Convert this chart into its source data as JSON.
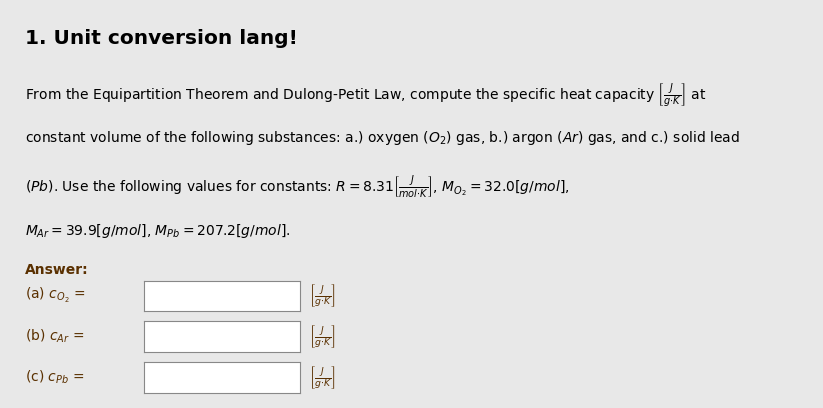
{
  "background_color": "#e8e8e8",
  "title": "1. Unit conversion lang!",
  "title_fontsize": 15,
  "text_color": "#000000",
  "answer_color": "#5a3000",
  "answer_label": "Answer:",
  "line1": "From the Equipartition Theorem and Dulong-Petit Law, compute the specific heat capacity $\\left[\\frac{J}{g{\\cdot}K}\\right]$ at",
  "line2": "constant volume of the following substances: a.) oxygen $(O_2)$ gas, b.) argon $(Ar)$ gas, and c.) solid lead",
  "line3": "$(Pb)$. Use the following values for constants: $R = 8.31\\left[\\frac{J}{mol{\\cdot}K}\\right]$, $M_{O_2} = 32.0[g/mol]$,",
  "line4": "$M_{Ar} = 39.9[g/mol]$, $M_{Pb} = 207.2[g/mol]$.",
  "answer_items": [
    {
      "label": "(a) $c_{O_2}$ ="
    },
    {
      "label": "(b) $c_{Ar}$ ="
    },
    {
      "label": "(c) $c_{Pb}$ ="
    }
  ],
  "unit_text": "$\\left[\\frac{J}{g{\\cdot}K}\\right]$",
  "fig_width": 8.23,
  "fig_height": 4.08,
  "dpi": 100
}
